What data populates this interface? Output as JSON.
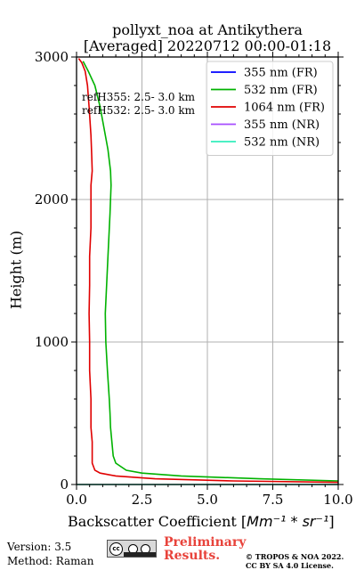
{
  "chart_data": {
    "type": "line",
    "title_line1": "pollyxt_noa at Antikythera",
    "title_line2": "[Averaged] 20220712 00:00-01:18",
    "xlabel_prefix": "Backscatter Coefficient [",
    "xlabel_unit": "Mm⁻¹ * sr⁻¹",
    "xlabel_suffix": "]",
    "ylabel": "Height (m)",
    "xlim": [
      0,
      10
    ],
    "ylim": [
      0,
      3000
    ],
    "x_ticks": [
      0,
      2.5,
      5,
      7.5,
      10
    ],
    "x_tick_labels": [
      "0.0",
      "2.5",
      "5.0",
      "7.5",
      "10.0"
    ],
    "y_ticks": [
      0,
      1000,
      2000,
      3000
    ],
    "y_tick_labels": [
      "0",
      "1000",
      "2000",
      "3000"
    ],
    "grid": true,
    "legend_placement": "top-right",
    "annotations": [
      "refH355:  2.5- 3.0 km",
      "refH532:  2.5- 3.0 km"
    ],
    "series": [
      {
        "name": "355 nm (FR)",
        "color": "#0000ff",
        "x": [],
        "y": []
      },
      {
        "name": "532 nm (FR)",
        "color": "#00b200",
        "x": [
          10.0,
          7.0,
          4.0,
          2.5,
          1.9,
          1.5,
          1.4,
          1.35,
          1.3,
          1.28,
          1.25,
          1.18,
          1.12,
          1.1,
          1.15,
          1.2,
          1.28,
          1.32,
          1.3,
          1.2,
          1.05,
          0.9,
          0.7,
          0.45,
          0.25
        ],
        "y": [
          25,
          40,
          60,
          80,
          100,
          150,
          200,
          300,
          400,
          500,
          600,
          800,
          1000,
          1200,
          1400,
          1600,
          1900,
          2100,
          2200,
          2350,
          2500,
          2650,
          2800,
          2900,
          2970
        ]
      },
      {
        "name": "1064 nm (FR)",
        "color": "#e00000",
        "x": [
          10.0,
          6.0,
          3.0,
          1.5,
          0.9,
          0.7,
          0.6,
          0.6,
          0.55,
          0.55,
          0.5,
          0.5,
          0.48,
          0.5,
          0.5,
          0.55,
          0.55,
          0.6,
          0.58,
          0.55,
          0.48,
          0.42,
          0.33,
          0.2,
          0.08
        ],
        "y": [
          15,
          25,
          40,
          60,
          80,
          100,
          150,
          300,
          400,
          600,
          800,
          1000,
          1200,
          1400,
          1600,
          1800,
          2100,
          2200,
          2300,
          2450,
          2650,
          2800,
          2900,
          2960,
          2990
        ]
      },
      {
        "name": "355 nm (NR)",
        "color": "#a64dff",
        "x": [],
        "y": []
      },
      {
        "name": "532 nm (NR)",
        "color": "#33eebb",
        "x": [
          0.0,
          10.0
        ],
        "y": [
          0,
          0
        ]
      }
    ]
  },
  "footer": {
    "version": "Version: 3.5",
    "method": "Method: Raman",
    "preliminary_line1": "Preliminary",
    "preliminary_line2": "Results.",
    "copyright_line1": "© TROPOS & NOA 2022.",
    "copyright_line2": "CC BY SA 4.0 License.",
    "cc_badge_text": "cc",
    "cc_badge_label_1": "BY",
    "cc_badge_label_2": "SA"
  }
}
